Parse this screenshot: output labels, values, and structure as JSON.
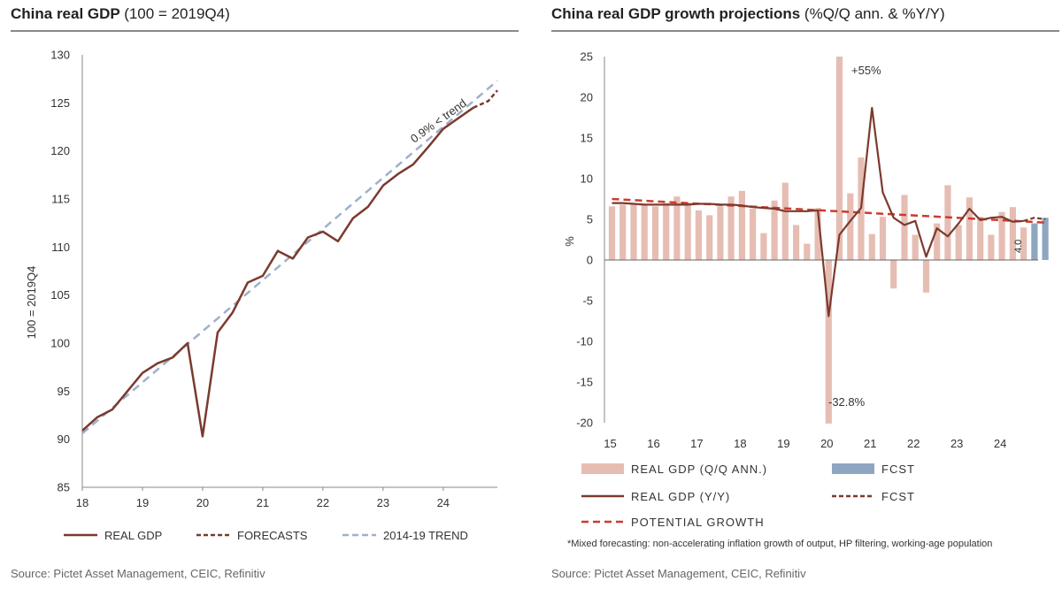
{
  "left": {
    "title_bold": "China real GDP",
    "title_rest": "(100 = 2019Q4)",
    "source": "Source: Pictet Asset Management, CEIC, Refinitiv"
  },
  "right": {
    "title_bold": "China real GDP growth projections",
    "title_rest": "(%Q/Q ann. & %Y/Y)",
    "footnote": "*Mixed forecasting: non-accelerating inflation growth of output, HP filtering, working-age population",
    "source": "Source: Pictet Asset Management, CEIC, Refinitiv"
  },
  "colors": {
    "gdp_line": "#7b3a2e",
    "forecast_line": "#7b3a2e",
    "trend_line": "#9fb0cc",
    "qq_bar": "#e6bdb3",
    "fcst_bar": "#8fa6c1",
    "potential": "#cc3b2e"
  },
  "chart_data": [
    {
      "type": "line",
      "xlabel": "",
      "ylabel": "100 = 2019Q4",
      "ylim": [
        85,
        130
      ],
      "yticks": [
        "85",
        "90",
        "95",
        "100",
        "105",
        "110",
        "115",
        "120",
        "125",
        "130"
      ],
      "xticks": [
        "18",
        "19",
        "20",
        "21",
        "22",
        "23",
        "24"
      ],
      "annotation": "0.9% < trend",
      "legend": [
        "REAL GDP",
        "FORECASTS",
        "2014-19 TREND"
      ],
      "grid": false,
      "series": [
        {
          "name": "REAL GDP",
          "x": [
            2018.0,
            2018.25,
            2018.5,
            2018.75,
            2019.0,
            2019.25,
            2019.5,
            2019.75,
            2020.0,
            2020.25,
            2020.5,
            2020.75,
            2021.0,
            2021.25,
            2021.5,
            2021.75,
            2022.0,
            2022.25,
            2022.5,
            2022.75,
            2023.0,
            2023.25,
            2023.5,
            2023.75,
            2024.0,
            2024.25,
            2024.5
          ],
          "values": [
            90.9,
            92.3,
            93.1,
            95.0,
            96.9,
            97.9,
            98.5,
            100.0,
            90.3,
            101.1,
            103.2,
            106.3,
            107.0,
            109.6,
            108.8,
            111.0,
            111.6,
            110.6,
            113.0,
            114.2,
            116.4,
            117.6,
            118.6,
            120.4,
            122.3,
            123.4,
            124.5
          ]
        },
        {
          "name": "FORECASTS",
          "x": [
            2024.5,
            2024.75,
            2024.9
          ],
          "values": [
            124.5,
            125.2,
            126.3
          ]
        },
        {
          "name": "2014-19 TREND",
          "x": [
            2018.0,
            2024.9
          ],
          "values": [
            90.6,
            127.3
          ]
        }
      ]
    },
    {
      "type": "bar",
      "xlabel": "",
      "ylabel": "%",
      "ylim": [
        -20,
        25
      ],
      "yticks": [
        "-20",
        "-15",
        "-10",
        "-5",
        "0",
        "5",
        "10",
        "15",
        "20",
        "25"
      ],
      "xticks": [
        "15",
        "16",
        "17",
        "18",
        "19",
        "20",
        "21",
        "22",
        "23",
        "24"
      ],
      "annotations": [
        "+55%",
        "-32.8%",
        "4.0"
      ],
      "legend": [
        "REAL GDP (Q/Q ANN.)",
        "FCST",
        "REAL GDP (Y/Y)",
        "FCST",
        "POTENTIAL GROWTH"
      ],
      "grid": false,
      "series": [
        {
          "name": "REAL GDP (Q/Q ANN.)",
          "values": [
            6.6,
            6.8,
            6.9,
            6.8,
            6.6,
            7.0,
            7.8,
            7.1,
            6.1,
            5.5,
            6.6,
            7.8,
            8.5,
            6.3,
            3.3,
            7.3,
            9.5,
            4.3,
            2.0,
            6.4,
            -20.1,
            25.0,
            8.2,
            12.6,
            3.2,
            5.3,
            -3.5,
            8.0,
            3.1,
            -4.0,
            4.5,
            9.2,
            4.3,
            7.7,
            5.3,
            3.1,
            5.9,
            6.5,
            4.0
          ]
        },
        {
          "name": "FCST",
          "values": [
            4.5,
            5.2
          ]
        },
        {
          "name": "REAL GDP (Y/Y)",
          "values": [
            7.0,
            7.0,
            6.9,
            6.8,
            6.8,
            6.8,
            6.8,
            6.8,
            6.9,
            6.9,
            6.8,
            6.8,
            6.7,
            6.5,
            6.4,
            6.3,
            6.0,
            6.0,
            6.0,
            6.1,
            -6.9,
            3.1,
            4.8,
            6.4,
            18.7,
            8.3,
            5.2,
            4.3,
            4.8,
            0.4,
            3.9,
            2.9,
            4.5,
            6.3,
            4.9,
            5.2,
            5.3,
            4.7,
            4.8
          ]
        },
        {
          "name": "FCST",
          "values": [
            4.8,
            5.2,
            5.0
          ]
        },
        {
          "name": "POTENTIAL GROWTH",
          "values": [
            7.5,
            7.4,
            7.3,
            7.2,
            7.1,
            7.0,
            6.9,
            6.8,
            6.7,
            6.6,
            6.5,
            6.4,
            6.3,
            6.2,
            6.1,
            6.0,
            5.9,
            5.8,
            5.7,
            5.6,
            5.5,
            5.4,
            5.3,
            5.2,
            5.1,
            5.0,
            4.9,
            4.8,
            4.7,
            4.6
          ]
        }
      ]
    }
  ]
}
